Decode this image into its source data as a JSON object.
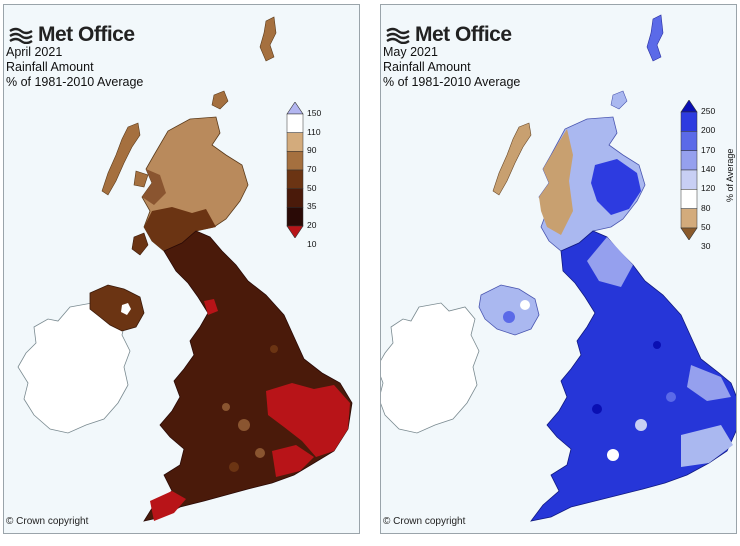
{
  "panels": [
    {
      "brand": "Met Office",
      "month": "April 2021",
      "variable": "Rainfall Amount",
      "baseline": "% of 1981-2010 Average",
      "copyright": "© Crown copyright",
      "legend": {
        "unit_label": "",
        "ticks": [
          "150",
          "110",
          "90",
          "70",
          "50",
          "35",
          "20",
          "10"
        ],
        "colors": [
          "#b3b6f0",
          "#ffffff",
          "#d3ab7c",
          "#a5703f",
          "#6b3413",
          "#4a1a0a",
          "#2a0a06",
          "#b81418"
        ]
      }
    },
    {
      "brand": "Met Office",
      "month": "May 2021",
      "variable": "Rainfall Amount",
      "baseline": "% of 1981-2010 Average",
      "copyright": "© Crown copyright",
      "legend": {
        "unit_label": "% of Average",
        "ticks": [
          "250",
          "200",
          "170",
          "140",
          "120",
          "80",
          "50",
          "30"
        ],
        "colors": [
          "#0a0fb3",
          "#2d3be0",
          "#5b6ae8",
          "#95a0ee",
          "#c8cff4",
          "#ffffff",
          "#d3ab7c",
          "#8a5a2b"
        ]
      }
    }
  ],
  "colors": {
    "ireland_fill": "#ffffff",
    "sea": "#f2f8fb",
    "april_main": "#4a1a0a",
    "april_scotland": "#b98a5c",
    "april_red": "#b81418",
    "may_main": "#2636d8",
    "may_light": "#aab8f0",
    "may_brown": "#c8a070"
  }
}
